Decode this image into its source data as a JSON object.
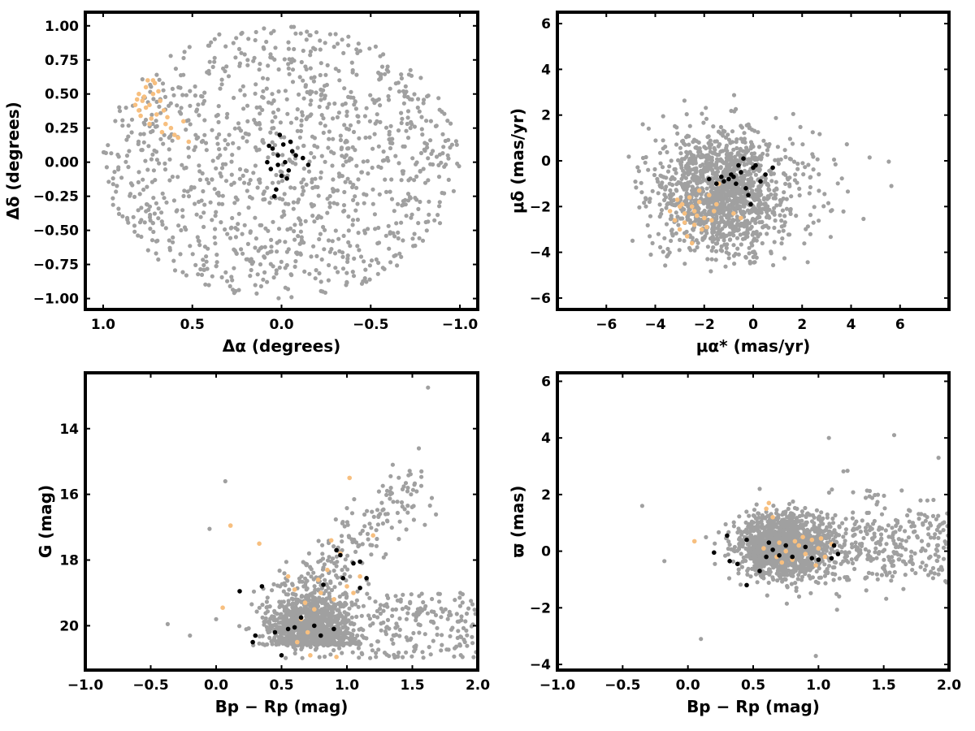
{
  "colors": {
    "field": "#a0a0a0",
    "orange": "#f7bf7f",
    "black": "#000000",
    "frame": "#000000"
  },
  "chart_data": [
    {
      "type": "scatter",
      "id": "sky",
      "xlabel": "Δα (degrees)",
      "ylabel": "Δδ (degrees)",
      "xlim": [
        1.1,
        -1.1
      ],
      "ylim": [
        -1.08,
        1.1
      ],
      "xticks": [
        1.0,
        0.5,
        0.0,
        -0.5,
        -1.0
      ],
      "xtick_labels": [
        "1.0",
        "0.5",
        "0.0",
        "−0.5",
        "−1.0"
      ],
      "yticks": [
        -1.0,
        -0.75,
        -0.5,
        -0.25,
        0.0,
        0.25,
        0.5,
        0.75,
        1.0
      ],
      "ytick_labels": [
        "−1.00",
        "−0.75",
        "−0.50",
        "−0.25",
        "0.00",
        "0.25",
        "0.50",
        "0.75",
        "1.00"
      ],
      "grid": false,
      "series": [
        {
          "color_key": "orange",
          "points": [
            [
              0.8,
              0.5
            ],
            [
              0.78,
              0.45
            ],
            [
              0.76,
              0.55
            ],
            [
              0.74,
              0.42
            ],
            [
              0.72,
              0.5
            ],
            [
              0.8,
              0.38
            ],
            [
              0.82,
              0.42
            ],
            [
              0.7,
              0.35
            ],
            [
              0.68,
              0.45
            ],
            [
              0.75,
              0.6
            ],
            [
              0.73,
              0.32
            ],
            [
              0.65,
              0.28
            ],
            [
              0.6,
              0.2
            ],
            [
              0.55,
              0.3
            ],
            [
              0.52,
              0.15
            ],
            [
              0.77,
              0.48
            ],
            [
              0.71,
              0.58
            ],
            [
              0.79,
              0.34
            ],
            [
              0.66,
              0.38
            ],
            [
              0.62,
              0.25
            ],
            [
              0.58,
              0.18
            ],
            [
              0.74,
              0.28
            ],
            [
              0.69,
              0.52
            ],
            [
              0.81,
              0.46
            ],
            [
              0.64,
              0.33
            ],
            [
              0.67,
              0.22
            ],
            [
              0.76,
              0.4
            ],
            [
              0.72,
              0.6
            ]
          ]
        },
        {
          "color_key": "black",
          "points": [
            [
              0.05,
              0.1
            ],
            [
              0.02,
              0.05
            ],
            [
              -0.02,
              0.0
            ],
            [
              0.0,
              -0.1
            ],
            [
              0.03,
              -0.2
            ],
            [
              -0.05,
              0.15
            ],
            [
              0.06,
              -0.05
            ],
            [
              -0.08,
              0.05
            ],
            [
              -0.12,
              0.03
            ],
            [
              0.07,
              0.12
            ],
            [
              -0.03,
              -0.12
            ],
            [
              0.01,
              0.2
            ],
            [
              -0.15,
              -0.02
            ],
            [
              0.04,
              -0.25
            ],
            [
              -0.06,
              0.08
            ],
            [
              0.02,
              -0.02
            ],
            [
              -0.01,
              0.13
            ],
            [
              0.08,
              0.0
            ],
            [
              -0.04,
              -0.06
            ]
          ]
        }
      ]
    },
    {
      "type": "scatter",
      "id": "pm",
      "xlabel": "μα* (mas/yr)",
      "ylabel": "μδ (mas/yr)",
      "xlim": [
        -8,
        8
      ],
      "ylim": [
        -6.5,
        6.5
      ],
      "xticks": [
        -6,
        -4,
        -2,
        0,
        2,
        4,
        6
      ],
      "xtick_labels": [
        "−6",
        "−4",
        "−2",
        "0",
        "2",
        "4",
        "6"
      ],
      "yticks": [
        -6,
        -4,
        -2,
        0,
        2,
        4,
        6
      ],
      "ytick_labels": [
        "−6",
        "−4",
        "−2",
        "0",
        "2",
        "4",
        "6"
      ],
      "grid": false,
      "series": [
        {
          "color_key": "orange",
          "points": [
            [
              -2.5,
              -2.0
            ],
            [
              -2.2,
              -1.8
            ],
            [
              -2.8,
              -2.3
            ],
            [
              -2.0,
              -2.5
            ],
            [
              -3.0,
              -2.0
            ],
            [
              -2.4,
              -2.8
            ],
            [
              -1.8,
              -1.5
            ],
            [
              -2.6,
              -1.6
            ],
            [
              -3.2,
              -2.6
            ],
            [
              -2.1,
              -3.0
            ],
            [
              -1.6,
              -2.2
            ],
            [
              -2.9,
              -1.9
            ],
            [
              -3.4,
              -2.2
            ],
            [
              -2.3,
              -2.4
            ],
            [
              -1.9,
              -2.9
            ],
            [
              -0.8,
              -2.3
            ],
            [
              -2.7,
              -3.3
            ],
            [
              -1.4,
              -1.0
            ],
            [
              -2.5,
              -3.6
            ],
            [
              -3.1,
              -1.7
            ],
            [
              -0.5,
              -2.5
            ],
            [
              -1.7,
              -2.6
            ],
            [
              -2.2,
              -1.3
            ],
            [
              -2.8,
              -2.7
            ],
            [
              -3.0,
              -3.0
            ],
            [
              -2.4,
              -2.2
            ],
            [
              -1.5,
              -1.9
            ]
          ]
        },
        {
          "color_key": "black",
          "points": [
            [
              -1.0,
              -0.8
            ],
            [
              -0.5,
              -0.5
            ],
            [
              0.0,
              -0.3
            ],
            [
              -1.5,
              -1.0
            ],
            [
              -0.8,
              -0.7
            ],
            [
              -0.3,
              -1.2
            ],
            [
              0.1,
              -0.2
            ],
            [
              -1.2,
              -0.9
            ],
            [
              -0.6,
              -0.2
            ],
            [
              -0.2,
              -1.5
            ],
            [
              0.5,
              -0.6
            ],
            [
              -1.8,
              -0.8
            ],
            [
              -0.9,
              -0.6
            ],
            [
              0.8,
              -0.3
            ],
            [
              -0.4,
              0.1
            ],
            [
              -0.1,
              -1.9
            ],
            [
              -0.7,
              -1.0
            ],
            [
              0.3,
              -0.9
            ],
            [
              -1.3,
              -0.7
            ]
          ]
        }
      ]
    },
    {
      "type": "scatter",
      "id": "cmd",
      "xlabel": "Bp − Rp (mag)",
      "ylabel": "G (mag)",
      "xlim": [
        -1.0,
        2.0
      ],
      "ylim": [
        21.35,
        12.3
      ],
      "xticks": [
        -1.0,
        -0.5,
        0.0,
        0.5,
        1.0,
        1.5,
        2.0
      ],
      "xtick_labels": [
        "−1.0",
        "−0.5",
        "0.0",
        "0.5",
        "1.0",
        "1.5",
        "2.0"
      ],
      "yticks": [
        14,
        16,
        18,
        20
      ],
      "ytick_labels": [
        "14",
        "16",
        "18",
        "20"
      ],
      "grid": false,
      "series": [
        {
          "color_key": "orange",
          "points": [
            [
              0.05,
              19.45
            ],
            [
              0.11,
              16.95
            ],
            [
              0.33,
              17.5
            ],
            [
              0.55,
              18.5
            ],
            [
              0.65,
              19.8
            ],
            [
              0.7,
              20.2
            ],
            [
              0.75,
              19.5
            ],
            [
              0.8,
              19.0
            ],
            [
              0.9,
              19.2
            ],
            [
              1.0,
              18.8
            ],
            [
              1.1,
              18.5
            ],
            [
              0.95,
              17.8
            ],
            [
              1.2,
              17.25
            ],
            [
              1.02,
              15.5
            ],
            [
              0.6,
              18.9
            ],
            [
              0.72,
              20.9
            ],
            [
              0.85,
              18.3
            ],
            [
              0.68,
              19.3
            ],
            [
              0.92,
              20.95
            ],
            [
              0.78,
              18.6
            ],
            [
              1.05,
              19.0
            ],
            [
              0.62,
              20.5
            ],
            [
              0.88,
              17.4
            ]
          ]
        },
        {
          "color_key": "black",
          "points": [
            [
              0.18,
              18.95
            ],
            [
              0.35,
              18.8
            ],
            [
              0.3,
              20.3
            ],
            [
              0.45,
              20.2
            ],
            [
              0.55,
              20.1
            ],
            [
              0.65,
              19.75
            ],
            [
              0.75,
              20.0
            ],
            [
              0.8,
              20.3
            ],
            [
              0.9,
              20.1
            ],
            [
              0.82,
              18.75
            ],
            [
              0.97,
              18.55
            ],
            [
              1.05,
              18.1
            ],
            [
              1.1,
              18.05
            ],
            [
              1.15,
              18.55
            ],
            [
              1.1,
              18.85
            ],
            [
              0.92,
              17.7
            ],
            [
              0.95,
              17.85
            ],
            [
              0.5,
              20.9
            ],
            [
              0.28,
              20.5
            ],
            [
              0.6,
              20.05
            ]
          ]
        }
      ]
    },
    {
      "type": "scatter",
      "id": "parallax",
      "xlabel": "Bp − Rp (mag)",
      "ylabel": "ϖ (mas)",
      "xlim": [
        -1.0,
        2.0
      ],
      "ylim": [
        -4.2,
        6.3
      ],
      "xticks": [
        -1.0,
        -0.5,
        0.0,
        0.5,
        1.0,
        1.5,
        2.0
      ],
      "xtick_labels": [
        "−1.0",
        "−0.5",
        "0.0",
        "0.5",
        "1.0",
        "1.5",
        "2.0"
      ],
      "yticks": [
        -4,
        -2,
        0,
        2,
        4,
        6
      ],
      "ytick_labels": [
        "−4",
        "−2",
        "0",
        "2",
        "4",
        "6"
      ],
      "grid": false,
      "series": [
        {
          "color_key": "orange",
          "points": [
            [
              0.05,
              0.35
            ],
            [
              0.6,
              1.5
            ],
            [
              0.62,
              1.7
            ],
            [
              0.65,
              1.2
            ],
            [
              0.7,
              0.3
            ],
            [
              0.75,
              0.0
            ],
            [
              0.8,
              -0.3
            ],
            [
              0.85,
              0.2
            ],
            [
              0.9,
              -0.1
            ],
            [
              0.95,
              0.4
            ],
            [
              1.0,
              0.1
            ],
            [
              1.05,
              -0.2
            ],
            [
              1.1,
              0.25
            ],
            [
              0.72,
              -0.4
            ],
            [
              0.88,
              0.5
            ],
            [
              0.58,
              0.1
            ],
            [
              0.98,
              -0.5
            ],
            [
              0.68,
              -0.2
            ],
            [
              0.82,
              0.35
            ],
            [
              1.02,
              0.45
            ]
          ]
        },
        {
          "color_key": "black",
          "points": [
            [
              0.2,
              -0.05
            ],
            [
              0.3,
              0.55
            ],
            [
              0.32,
              -0.35
            ],
            [
              0.38,
              -0.45
            ],
            [
              0.45,
              0.4
            ],
            [
              0.45,
              -1.2
            ],
            [
              0.55,
              -0.7
            ],
            [
              0.6,
              -0.2
            ],
            [
              0.65,
              0.05
            ],
            [
              0.75,
              0.2
            ],
            [
              0.8,
              -0.2
            ],
            [
              0.9,
              0.15
            ],
            [
              0.95,
              -0.25
            ],
            [
              1.0,
              -0.3
            ],
            [
              1.1,
              -0.25
            ],
            [
              1.12,
              0.2
            ],
            [
              1.15,
              -0.1
            ],
            [
              0.62,
              0.3
            ],
            [
              0.7,
              -0.15
            ]
          ]
        }
      ]
    }
  ]
}
